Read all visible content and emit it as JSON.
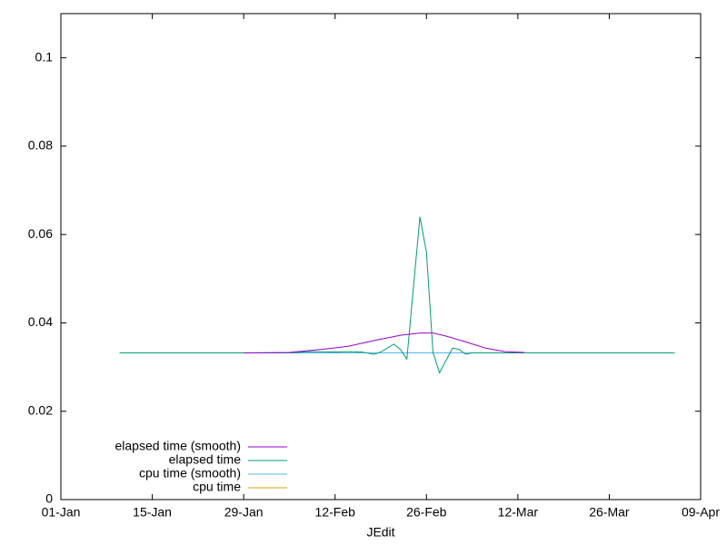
{
  "chart_data": {
    "type": "line",
    "xlabel": "JEdit",
    "xlim": [
      "01-Jan",
      "09-Apr"
    ],
    "xticks": [
      "01-Jan",
      "15-Jan",
      "29-Jan",
      "12-Feb",
      "26-Feb",
      "12-Mar",
      "26-Mar",
      "09-Apr"
    ],
    "ylim": [
      0,
      0.11
    ],
    "yticks": [
      0,
      0.02,
      0.04,
      0.06,
      0.08,
      0.1
    ],
    "legend": "bottom-left",
    "series": [
      {
        "name": "elapsed time (smooth)",
        "color": "#9400d3",
        "x": [
          "29-Jan",
          "05-Feb",
          "10-Feb",
          "14-Feb",
          "18-Feb",
          "22-Feb",
          "25-Feb",
          "27-Feb",
          "01-Mar",
          "04-Mar",
          "07-Mar",
          "10-Mar",
          "13-Mar"
        ],
        "values": [
          0.0332,
          0.0333,
          0.034,
          0.0347,
          0.036,
          0.0372,
          0.0377,
          0.0377,
          0.037,
          0.0357,
          0.0343,
          0.0335,
          0.0333
        ]
      },
      {
        "name": "elapsed time",
        "color": "#009e73",
        "x": [
          "10-Jan",
          "05-Feb",
          "08-Feb",
          "12-Feb",
          "14-Feb",
          "16-Feb",
          "18-Feb",
          "19-Feb",
          "21-Feb",
          "22-Feb",
          "23-Feb",
          "24-Feb",
          "25-Feb",
          "26-Feb",
          "27-Feb",
          "28-Feb",
          "02-Mar",
          "03-Mar",
          "04-Mar",
          "05-Mar",
          "05-Apr"
        ],
        "values": [
          0.0332,
          0.0332,
          0.0335,
          0.0334,
          0.0335,
          0.0334,
          0.0329,
          0.0334,
          0.0352,
          0.034,
          0.0318,
          0.048,
          0.064,
          0.056,
          0.0333,
          0.0287,
          0.0343,
          0.034,
          0.0329,
          0.0332,
          0.0332
        ]
      },
      {
        "name": "cpu time (smooth)",
        "color": "#56b4e9",
        "x": [
          "29-Jan",
          "05-Feb",
          "13-Mar"
        ],
        "values": [
          0.0332,
          0.0332,
          0.0332
        ]
      },
      {
        "name": "cpu time",
        "color": "#e69f00",
        "x": [
          "10-Jan",
          "05-Apr"
        ],
        "values": [
          0.0332,
          0.0332
        ]
      }
    ]
  }
}
